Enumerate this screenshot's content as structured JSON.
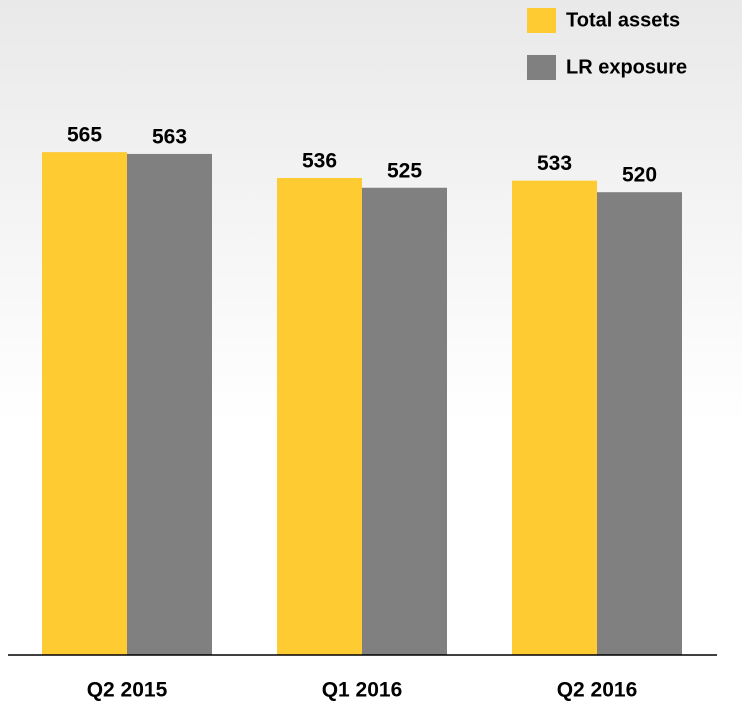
{
  "chart_data": {
    "type": "bar",
    "categories": [
      "Q2 2015",
      "Q1 2016",
      "Q2 2016"
    ],
    "series": [
      {
        "name": "Total assets",
        "color": "#fecb32",
        "values": [
          565,
          536,
          533
        ]
      },
      {
        "name": "LR exposure",
        "color": "#808080",
        "values": [
          563,
          525,
          520
        ]
      }
    ],
    "ylim": [
      0,
      600
    ]
  }
}
